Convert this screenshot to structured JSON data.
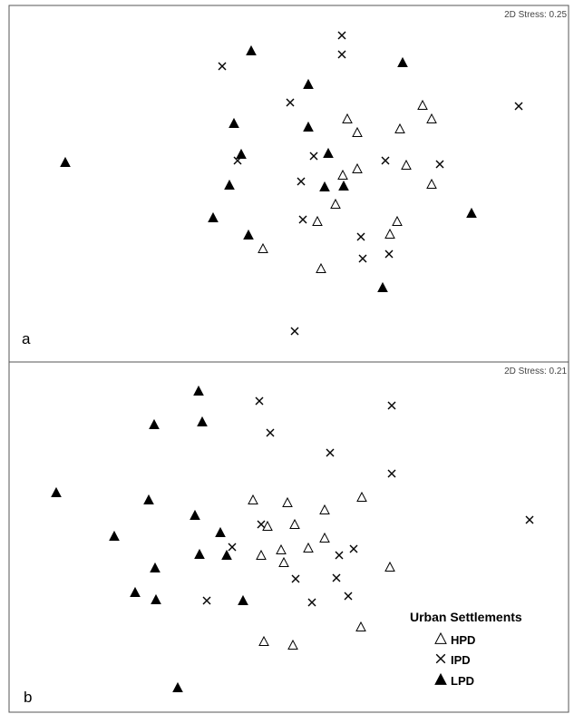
{
  "colors": {
    "hpd": "#ffffff",
    "ipd": "#000000",
    "lpd": "#000000",
    "frame": "#555555"
  },
  "legend": {
    "title": "Urban Settlements",
    "entries": [
      {
        "key": "hpd",
        "label": "HPD",
        "marker": "open-triangle"
      },
      {
        "key": "ipd",
        "label": "IPD",
        "marker": "cross"
      },
      {
        "key": "lpd",
        "label": "LPD",
        "marker": "filled-triangle"
      }
    ]
  },
  "chart_data": [
    {
      "type": "scatter",
      "panel_label": "a",
      "stress_label": "2D Stress: 0.25",
      "xlim": [
        0,
        633
      ],
      "ylim": [
        0,
        400
      ],
      "series": [
        {
          "key": "hpd",
          "points": [
            [
              383,
              131
            ],
            [
              394,
              146
            ],
            [
              466,
              116
            ],
            [
              476,
              131
            ],
            [
              441,
              142
            ],
            [
              394,
              186
            ],
            [
              448,
              182
            ],
            [
              378,
              193
            ],
            [
              476,
              203
            ],
            [
              370,
              225
            ],
            [
              350,
              244
            ],
            [
              438,
              244
            ],
            [
              430,
              258
            ],
            [
              290,
              274
            ],
            [
              354,
              296
            ]
          ]
        },
        {
          "key": "ipd",
          "points": [
            [
              377,
              39
            ],
            [
              377,
              60
            ],
            [
              245,
              73
            ],
            [
              320,
              113
            ],
            [
              572,
              117
            ],
            [
              346,
              172
            ],
            [
              262,
              177
            ],
            [
              425,
              177
            ],
            [
              485,
              181
            ],
            [
              332,
              200
            ],
            [
              334,
              242
            ],
            [
              398,
              261
            ],
            [
              429,
              280
            ],
            [
              400,
              285
            ],
            [
              325,
              365
            ]
          ]
        },
        {
          "key": "lpd",
          "points": [
            [
              277,
              56
            ],
            [
              444,
              69
            ],
            [
              340,
              93
            ],
            [
              258,
              136
            ],
            [
              340,
              140
            ],
            [
              266,
              170
            ],
            [
              362,
              169
            ],
            [
              72,
              179
            ],
            [
              253,
              204
            ],
            [
              358,
              206
            ],
            [
              379,
              205
            ],
            [
              235,
              240
            ],
            [
              520,
              235
            ],
            [
              274,
              259
            ],
            [
              422,
              317
            ]
          ]
        }
      ]
    },
    {
      "type": "scatter",
      "panel_label": "b",
      "stress_label": "2D Stress: 0.21",
      "xlim": [
        0,
        633
      ],
      "ylim": [
        400,
        787
      ],
      "series": [
        {
          "key": "hpd",
          "points": [
            [
              399,
              548
            ],
            [
              279,
              551
            ],
            [
              317,
              554
            ],
            [
              358,
              562
            ],
            [
              295,
              580
            ],
            [
              325,
              578
            ],
            [
              358,
              593
            ],
            [
              340,
              604
            ],
            [
              310,
              606
            ],
            [
              288,
              612
            ],
            [
              313,
              620
            ],
            [
              430,
              625
            ],
            [
              398,
              691
            ],
            [
              291,
              707
            ],
            [
              323,
              711
            ]
          ]
        },
        {
          "key": "ipd",
          "points": [
            [
              286,
              442
            ],
            [
              432,
              447
            ],
            [
              298,
              477
            ],
            [
              364,
              499
            ],
            [
              432,
              522
            ],
            [
              584,
              573
            ],
            [
              288,
              578
            ],
            [
              256,
              603
            ],
            [
              390,
              605
            ],
            [
              374,
              612
            ],
            [
              326,
              638
            ],
            [
              371,
              637
            ],
            [
              384,
              657
            ],
            [
              344,
              664
            ],
            [
              228,
              662
            ]
          ]
        },
        {
          "key": "lpd",
          "points": [
            [
              219,
              431
            ],
            [
              170,
              468
            ],
            [
              223,
              465
            ],
            [
              62,
              543
            ],
            [
              164,
              551
            ],
            [
              215,
              568
            ],
            [
              243,
              587
            ],
            [
              126,
              591
            ],
            [
              220,
              611
            ],
            [
              250,
              612
            ],
            [
              171,
              626
            ],
            [
              149,
              653
            ],
            [
              172,
              661
            ],
            [
              268,
              662
            ],
            [
              196,
              758
            ]
          ]
        }
      ]
    }
  ]
}
